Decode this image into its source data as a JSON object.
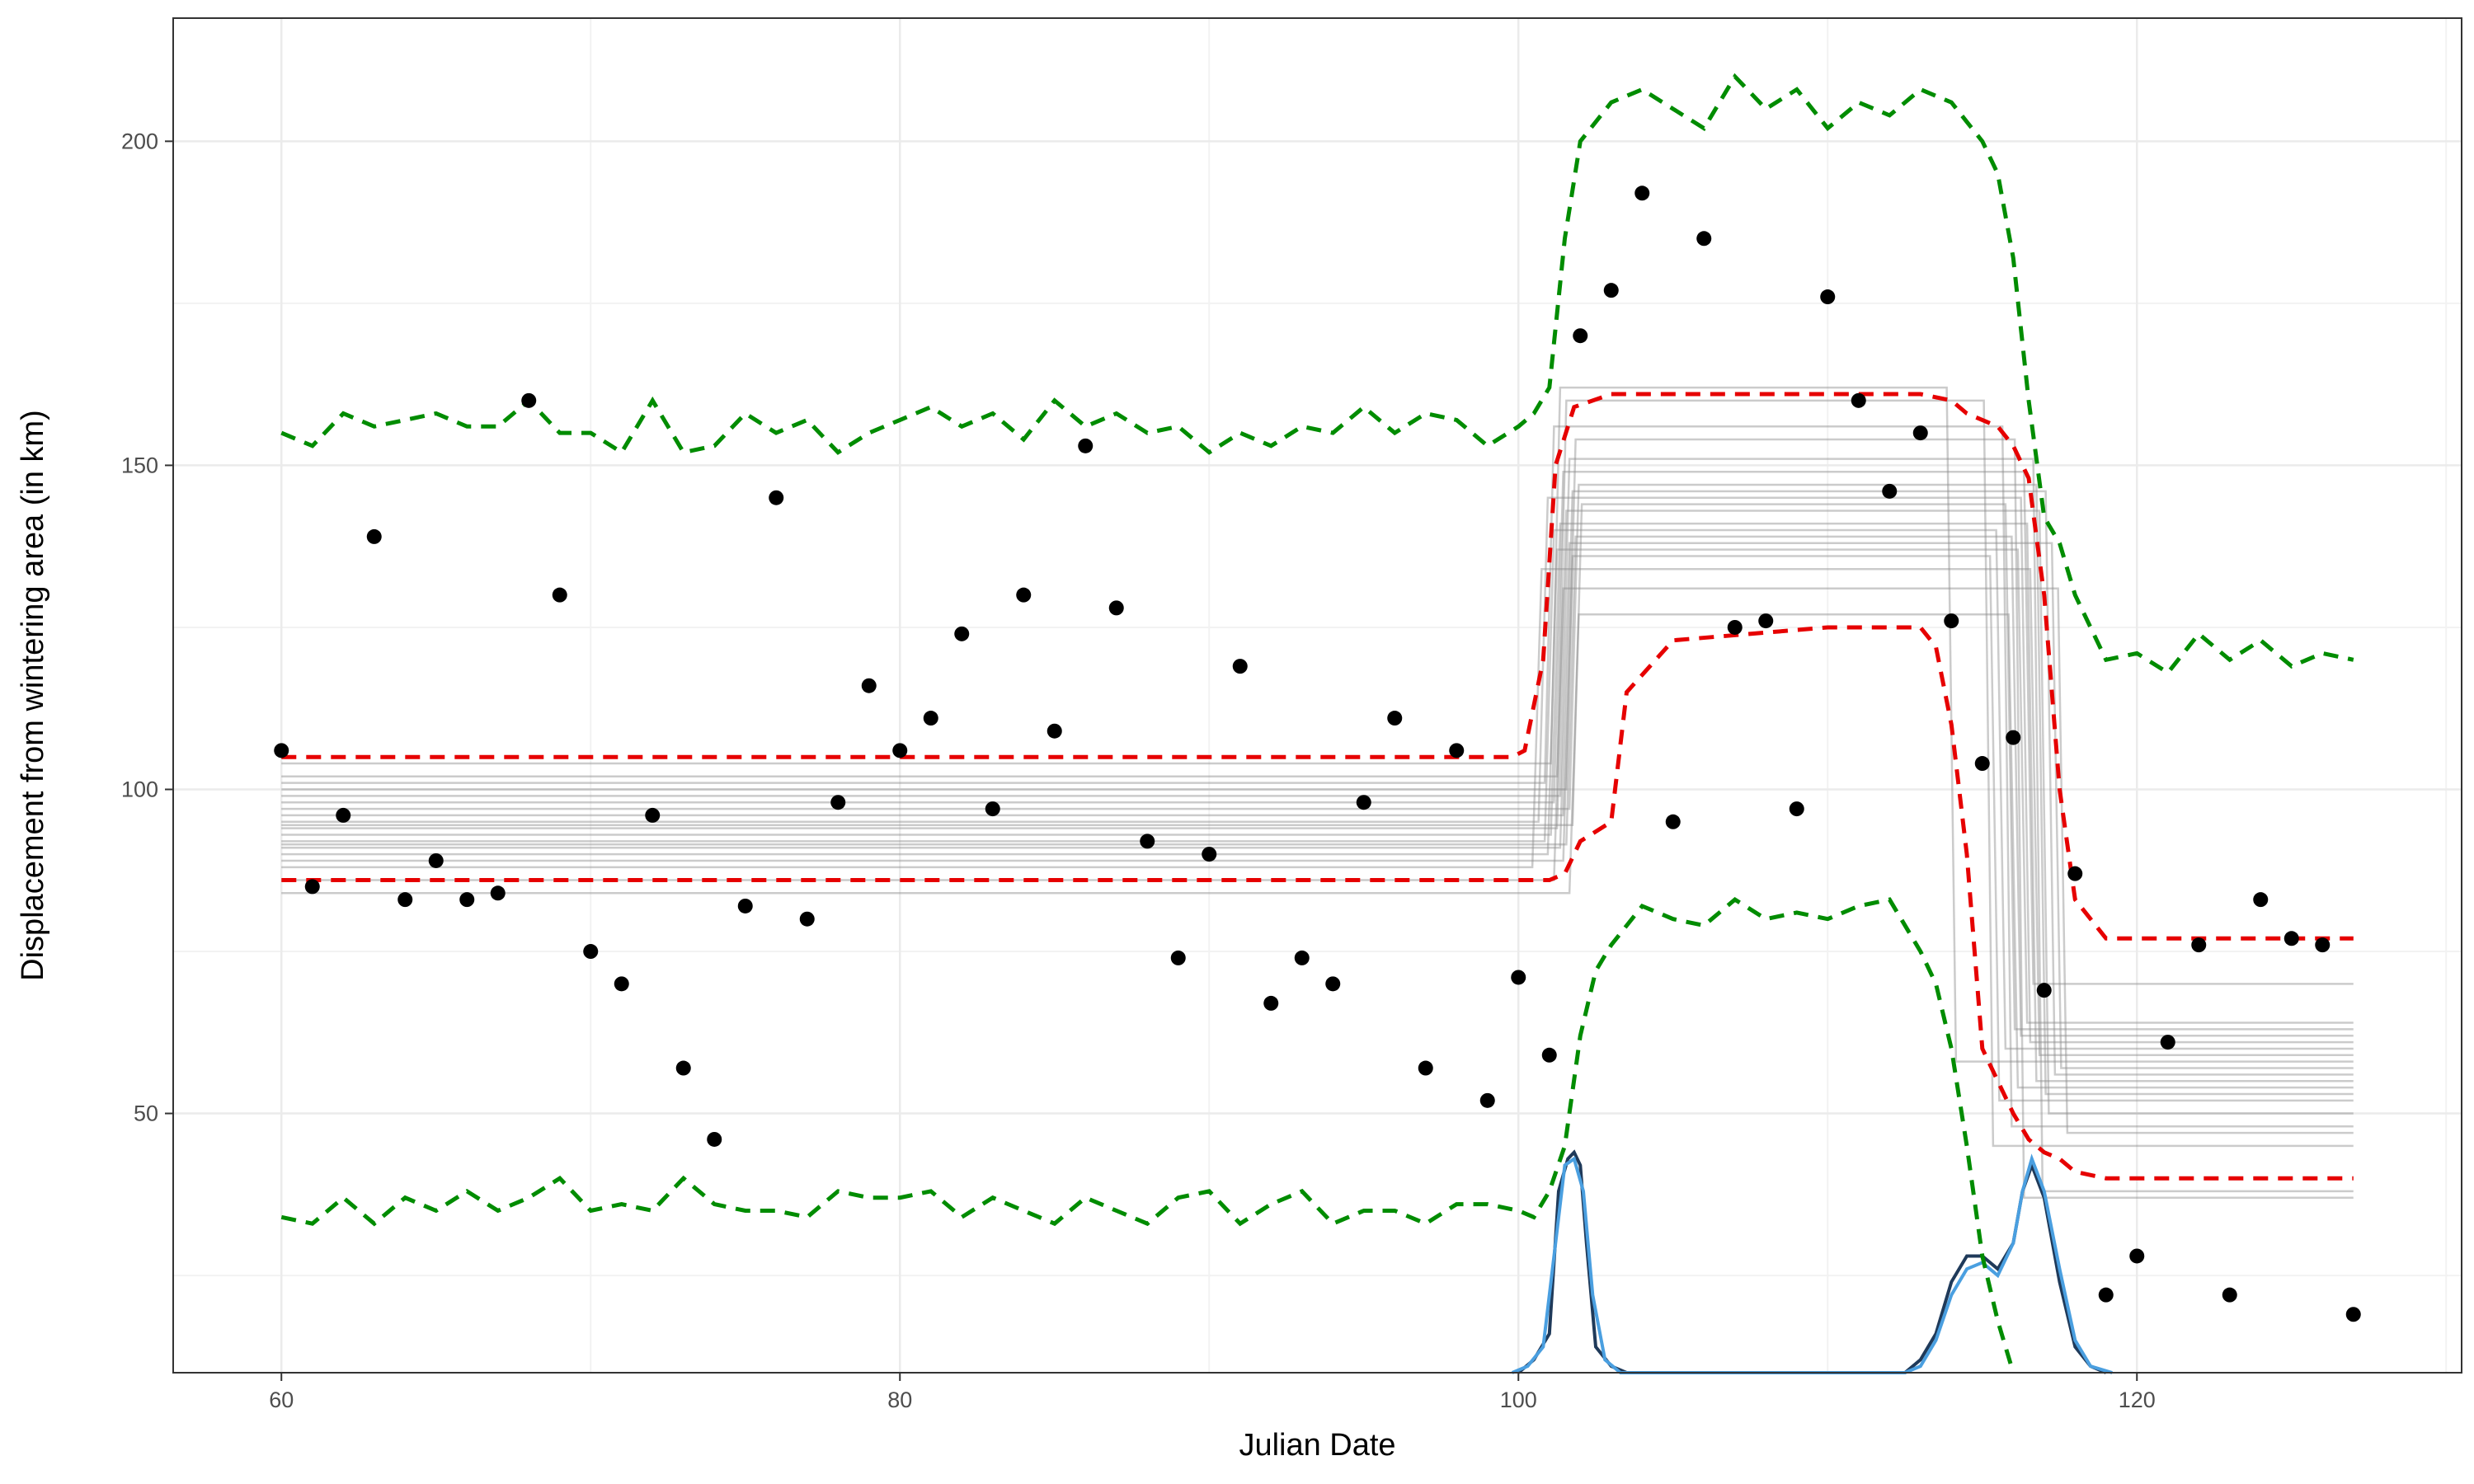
{
  "chart_data": {
    "type": "scatter",
    "title": "",
    "xlabel": "Julian Date",
    "ylabel": "Displacement from wintering area (in km)",
    "xlim": [
      56.5,
      130.5
    ],
    "ylim": [
      10,
      219
    ],
    "x_ticks": [
      60,
      80,
      100,
      120
    ],
    "y_ticks": [
      50,
      100,
      150,
      200
    ],
    "grid": true,
    "legend": "none",
    "colors": {
      "points": "#000000",
      "step_models": "#8c8c8c",
      "inner_band": "#e60000",
      "outer_band": "#008c00",
      "density_dark": "#1f3a5a",
      "density_light": "#4a9fe0"
    },
    "series": [
      {
        "kind": "points",
        "x": [
          60,
          61,
          62,
          63,
          64,
          65,
          66,
          67,
          68,
          69,
          70,
          71,
          72,
          73,
          74,
          75,
          76,
          77,
          78,
          79,
          80,
          81,
          82,
          83,
          84,
          85,
          86,
          87,
          88,
          89,
          90,
          91,
          92,
          93,
          94,
          95,
          96,
          97,
          98,
          99,
          100,
          101,
          102,
          103,
          104,
          105,
          106,
          107,
          108,
          109,
          110,
          111,
          112,
          113,
          114,
          115,
          116,
          117,
          118,
          119,
          120,
          121,
          122,
          123,
          124,
          125,
          126,
          127
        ],
        "y": [
          106,
          85,
          96,
          139,
          83,
          89,
          83,
          84,
          160,
          130,
          75,
          70,
          96,
          57,
          46,
          82,
          145,
          80,
          98,
          116,
          106,
          111,
          124,
          97,
          130,
          109,
          153,
          128,
          92,
          74,
          90,
          119,
          67,
          74,
          70,
          98,
          111,
          57,
          106,
          52,
          71,
          59,
          170,
          177,
          192,
          95,
          185,
          125,
          126,
          97,
          176,
          160,
          146,
          155,
          126,
          104,
          108,
          69,
          87,
          22,
          28,
          61,
          76,
          22,
          83,
          77,
          76,
          19
        ]
      },
      {
        "kind": "outer_band_upper",
        "x": [
          60,
          61,
          62,
          63,
          64,
          65,
          66,
          67,
          68,
          69,
          70,
          71,
          72,
          73,
          74,
          75,
          76,
          77,
          78,
          79,
          80,
          81,
          82,
          83,
          84,
          85,
          86,
          87,
          88,
          89,
          90,
          91,
          92,
          93,
          94,
          95,
          96,
          97,
          98,
          99,
          100,
          100.5,
          101,
          101.5,
          102,
          103,
          104,
          105,
          106,
          107,
          108,
          109,
          110,
          111,
          112,
          113,
          114,
          114.5,
          115,
          115.5,
          116,
          116.5,
          117,
          117.5,
          118,
          119,
          120,
          121,
          122,
          123,
          124,
          125,
          126,
          127
        ],
        "y": [
          155,
          153,
          158,
          156,
          157,
          158,
          156,
          156,
          160,
          155,
          155,
          152,
          160,
          152,
          153,
          158,
          155,
          157,
          152,
          155,
          157,
          159,
          156,
          158,
          154,
          160,
          156,
          158,
          155,
          156,
          152,
          155,
          153,
          156,
          155,
          159,
          155,
          158,
          157,
          153,
          156,
          158,
          162,
          185,
          200,
          206,
          208,
          205,
          202,
          210,
          205,
          208,
          202,
          206,
          204,
          208,
          206,
          203,
          200,
          195,
          182,
          160,
          142,
          138,
          130,
          120,
          121,
          118,
          124,
          120,
          123,
          119,
          121,
          120
        ]
      },
      {
        "kind": "inner_band_upper",
        "x": [
          60,
          70,
          80,
          90,
          99,
          99.8,
          100.2,
          100.8,
          101.2,
          101.8,
          103,
          105,
          110,
          113,
          114,
          114.5,
          115,
          115.5,
          116,
          116.5,
          117,
          117.5,
          118,
          119,
          120,
          127
        ],
        "y": [
          105,
          105,
          105,
          105,
          105,
          105,
          106,
          120,
          150,
          159,
          161,
          161,
          161,
          161,
          160,
          158,
          157,
          156,
          153,
          148,
          130,
          100,
          83,
          77,
          77,
          77
        ]
      },
      {
        "kind": "inner_band_lower",
        "x": [
          60,
          70,
          80,
          90,
          100,
          101,
          101.5,
          102,
          103,
          103.5,
          105,
          110,
          112,
          113,
          113.5,
          114,
          114.5,
          115,
          115.5,
          116,
          116.5,
          117,
          117.5,
          118,
          119,
          120,
          127
        ],
        "y": [
          86,
          86,
          86,
          86,
          86,
          86,
          87,
          92,
          95,
          115,
          123,
          125,
          125,
          125,
          122,
          110,
          90,
          60,
          55,
          50,
          46,
          44,
          43,
          41,
          40,
          40,
          40
        ]
      },
      {
        "kind": "outer_band_lower",
        "x": [
          60,
          61,
          62,
          63,
          64,
          65,
          66,
          67,
          68,
          69,
          70,
          71,
          72,
          73,
          74,
          75,
          76,
          77,
          78,
          79,
          80,
          81,
          82,
          83,
          84,
          85,
          86,
          87,
          88,
          89,
          90,
          91,
          92,
          93,
          94,
          95,
          96,
          97,
          98,
          99,
          100,
          100.5,
          101,
          101.5,
          102,
          102.5,
          103,
          104,
          105,
          106,
          107,
          108,
          109,
          110,
          111,
          112,
          113,
          113.5,
          114,
          114.5,
          115,
          115.5,
          116
        ],
        "y": [
          34,
          33,
          37,
          33,
          37,
          35,
          38,
          35,
          37,
          40,
          35,
          36,
          35,
          40,
          36,
          35,
          35,
          34,
          38,
          37,
          37,
          38,
          34,
          37,
          35,
          33,
          37,
          35,
          33,
          37,
          38,
          33,
          36,
          38,
          33,
          35,
          35,
          33,
          36,
          36,
          35,
          34,
          38,
          45,
          62,
          72,
          76,
          82,
          80,
          79,
          83,
          80,
          81,
          80,
          82,
          83,
          75,
          70,
          60,
          45,
          28,
          18,
          10
        ]
      },
      {
        "kind": "step_models",
        "lines": [
          {
            "y1": 104,
            "t1": 101.2,
            "y2": 162,
            "t2": 114.0,
            "y3": 58
          },
          {
            "y1": 102,
            "t1": 101.4,
            "y2": 160,
            "t2": 115.2,
            "y3": 45
          },
          {
            "y1": 101,
            "t1": 101.0,
            "y2": 156,
            "t2": 115.8,
            "y3": 48
          },
          {
            "y1": 100,
            "t1": 101.7,
            "y2": 154,
            "t2": 116.2,
            "y3": 37
          },
          {
            "y1": 99,
            "t1": 101.5,
            "y2": 151,
            "t2": 116.8,
            "y3": 38
          },
          {
            "y1": 98,
            "t1": 101.3,
            "y2": 149,
            "t2": 116.5,
            "y3": 70
          },
          {
            "y1": 97,
            "t1": 101.8,
            "y2": 147,
            "t2": 116.9,
            "y3": 53
          },
          {
            "y1": 96,
            "t1": 101.6,
            "y2": 146,
            "t2": 117.2,
            "y3": 56
          },
          {
            "y1": 95,
            "t1": 100.8,
            "y2": 145,
            "t2": 116.4,
            "y3": 61
          },
          {
            "y1": 94.5,
            "t1": 101.9,
            "y2": 144,
            "t2": 115.9,
            "y3": 63
          },
          {
            "y1": 94,
            "t1": 101.4,
            "y2": 143,
            "t2": 117.0,
            "y3": 50
          },
          {
            "y1": 93,
            "t1": 101.2,
            "y2": 141,
            "t2": 116.6,
            "y3": 55
          },
          {
            "y1": 92,
            "t1": 101.0,
            "y2": 140,
            "t2": 115.6,
            "y3": 60
          },
          {
            "y1": 91.5,
            "t1": 101.7,
            "y2": 139,
            "t2": 116.1,
            "y3": 62
          },
          {
            "y1": 91,
            "t1": 101.5,
            "y2": 138,
            "t2": 117.4,
            "y3": 57
          },
          {
            "y1": 90,
            "t1": 101.1,
            "y2": 137,
            "t2": 116.3,
            "y3": 64
          },
          {
            "y1": 89,
            "t1": 101.6,
            "y2": 136,
            "t2": 115.4,
            "y3": 52
          },
          {
            "y1": 88,
            "t1": 100.6,
            "y2": 134,
            "t2": 116.7,
            "y3": 59
          },
          {
            "y1": 86,
            "t1": 101.3,
            "y2": 131,
            "t2": 117.6,
            "y3": 47
          },
          {
            "y1": 84,
            "t1": 101.8,
            "y2": 127,
            "t2": 116.0,
            "y3": 54
          }
        ]
      },
      {
        "kind": "density_dark",
        "x": [
          100,
          100.5,
          101,
          101.3,
          101.6,
          101.8,
          102,
          102.2,
          102.5,
          103,
          103.5,
          112.5,
          113,
          113.5,
          114,
          114.5,
          115,
          115.5,
          116,
          116.3,
          116.6,
          117,
          117.5,
          118,
          118.5,
          119
        ],
        "y": [
          10,
          12,
          16,
          38,
          43,
          44,
          42,
          30,
          14,
          11,
          10,
          10,
          12,
          16,
          24,
          28,
          28,
          26,
          30,
          38,
          42,
          37,
          24,
          14,
          11,
          10
        ]
      },
      {
        "kind": "density_light",
        "x": [
          99.8,
          100.3,
          100.8,
          101.2,
          101.5,
          101.8,
          102.1,
          102.4,
          102.8,
          103.3,
          112.5,
          113,
          113.5,
          114,
          114.5,
          115,
          115.5,
          116,
          116.3,
          116.6,
          117,
          117.5,
          118,
          118.5,
          119.2
        ],
        "y": [
          10,
          11,
          14,
          30,
          42,
          43,
          38,
          22,
          12,
          10,
          10,
          11,
          15,
          22,
          26,
          27,
          25,
          30,
          38,
          43,
          38,
          26,
          15,
          11,
          10
        ]
      }
    ]
  }
}
